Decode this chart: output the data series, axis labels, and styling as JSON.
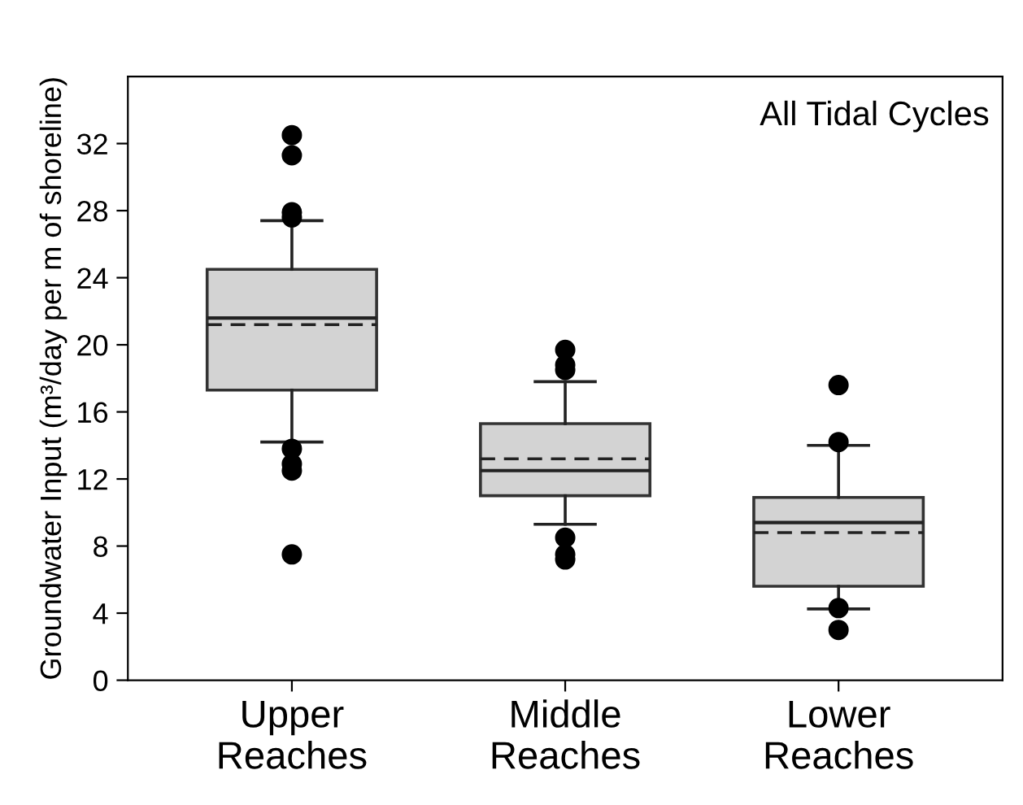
{
  "chart_data": {
    "type": "box",
    "ylabel": "Groundwater Input (m³/day per m of shoreline)",
    "annotations": [
      "All Tidal Cycles"
    ],
    "categories": [
      "Upper\nReaches",
      "Middle\nReaches",
      "Lower\nReaches"
    ],
    "color": "#d3d3d3",
    "boxes": [
      {
        "low": 14.2,
        "q1": 17.3,
        "median": 21.6,
        "q3": 24.5,
        "high": 27.4,
        "mean": 21.2,
        "outliers": [
          32.5,
          31.3,
          27.9,
          27.6,
          13.8,
          12.9,
          12.5,
          7.5
        ]
      },
      {
        "low": 9.3,
        "q1": 11.0,
        "median": 12.5,
        "q3": 15.3,
        "high": 17.8,
        "mean": 13.2,
        "outliers": [
          19.7,
          18.8,
          18.5,
          8.5,
          7.5,
          7.2
        ]
      },
      {
        "low": 4.25,
        "q1": 5.6,
        "median": 9.4,
        "q3": 10.9,
        "high": 14.0,
        "mean": 8.8,
        "outliers": [
          17.6,
          14.2,
          4.3,
          3.0
        ]
      }
    ],
    "ylim": [
      0,
      36
    ],
    "yticks": [
      0,
      4,
      8,
      12,
      16,
      20,
      24,
      28,
      32
    ],
    "grid": false
  }
}
